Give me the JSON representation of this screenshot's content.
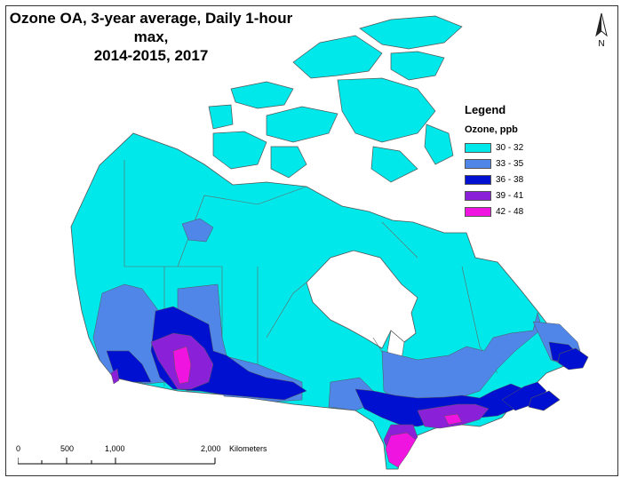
{
  "map": {
    "title_line1": "Ozone OA, 3-year average, Daily 1-hour max,",
    "title_line2": "2014-2015, 2017",
    "north_label": "N"
  },
  "legend": {
    "title": "Legend",
    "subtitle": "Ozone, ppb",
    "classes": [
      {
        "label": "30 - 32",
        "color": "#00e8ea"
      },
      {
        "label": "33 - 35",
        "color": "#4f86e8"
      },
      {
        "label": "36 - 38",
        "color": "#0010d0"
      },
      {
        "label": "39 - 41",
        "color": "#8a20d8"
      },
      {
        "label": "42 - 48",
        "color": "#f014e0"
      }
    ]
  },
  "scalebar": {
    "ticks": [
      "0",
      "500",
      "1,000",
      "2,000"
    ],
    "unit": "Kilometers"
  }
}
